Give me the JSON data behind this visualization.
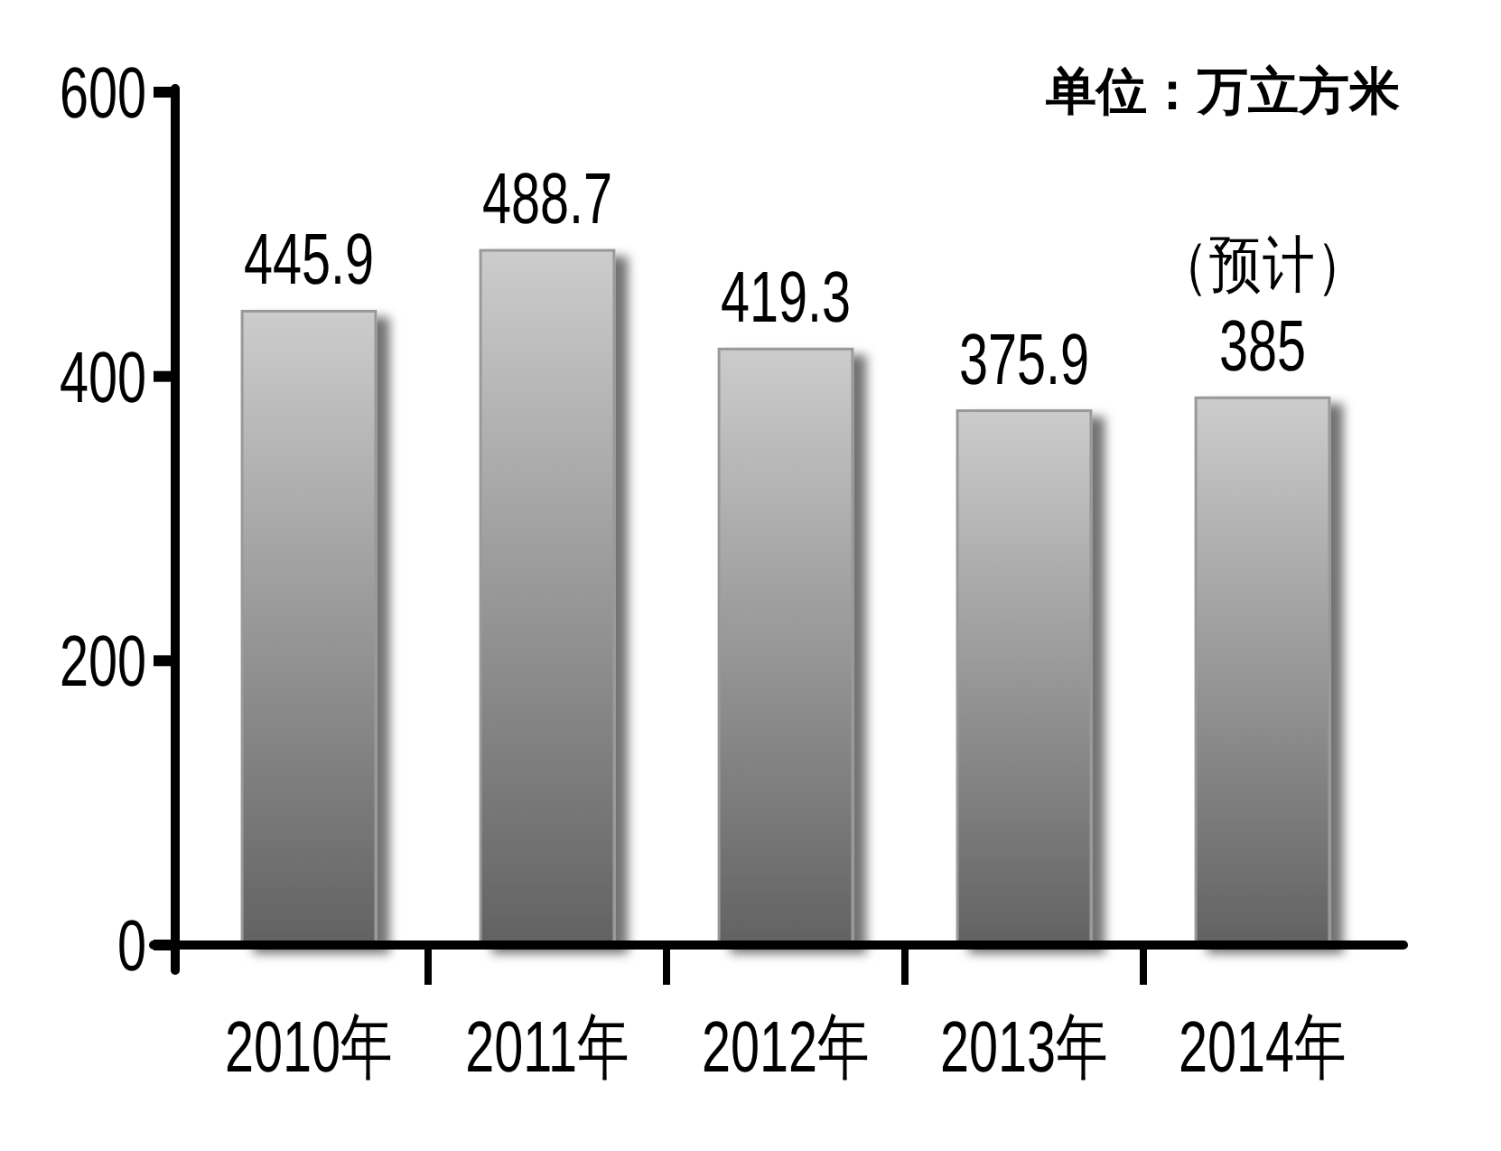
{
  "chart_data": {
    "type": "bar",
    "categories": [
      "2010年",
      "2011年",
      "2012年",
      "2013年",
      "2014年"
    ],
    "values": [
      445.9,
      488.7,
      419.3,
      375.9,
      385
    ],
    "color": "#999999",
    "ylim": [
      0,
      600
    ],
    "yticks": [
      0,
      200,
      400,
      600
    ],
    "data_labels": true,
    "annotations": [
      "单位：万立方米",
      {
        "text": "（预计）",
        "x": "2014年",
        "y": 385
      }
    ]
  }
}
